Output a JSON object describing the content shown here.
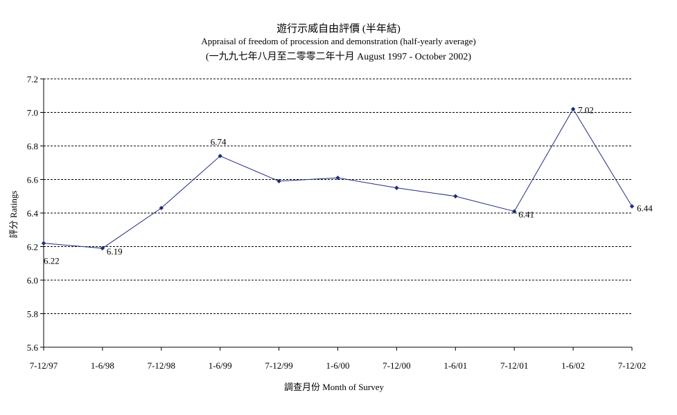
{
  "chart_data": {
    "type": "line",
    "title": "遊行示威自由評價 (半年結)",
    "subtitle": "Appraisal of freedom of procession and demonstration (half-yearly average)",
    "subtitle2": "(一九九七年八月至二零零二年十月 August 1997 - October 2002)",
    "xlabel": "調查月份 Month of Survey",
    "ylabel": "評分 Ratings",
    "categories": [
      "7-12/97",
      "1-6/98",
      "7-12/98",
      "1-6/99",
      "7-12/99",
      "1-6/00",
      "7-12/00",
      "1-6/01",
      "7-12/01",
      "1-6/02",
      "7-12/02"
    ],
    "series": [
      {
        "values": [
          6.22,
          6.19,
          6.43,
          6.74,
          6.59,
          6.61,
          6.55,
          6.5,
          6.41,
          7.02,
          6.44
        ],
        "labels": [
          "6.22",
          "6.19",
          "",
          "6.74",
          "",
          "",
          "",
          "",
          "6.41",
          "7.02",
          "6.44"
        ]
      }
    ],
    "ylim": [
      5.6,
      7.2
    ],
    "yticks": [
      "5.6",
      "5.8",
      "6.0",
      "6.2",
      "6.4",
      "6.6",
      "6.8",
      "7.0",
      "7.2"
    ],
    "grid": "horizontal dashed",
    "legend": "none",
    "colors": {
      "line": "#1f2a80",
      "marker": "#1f2a80",
      "grid": "#000000"
    }
  }
}
